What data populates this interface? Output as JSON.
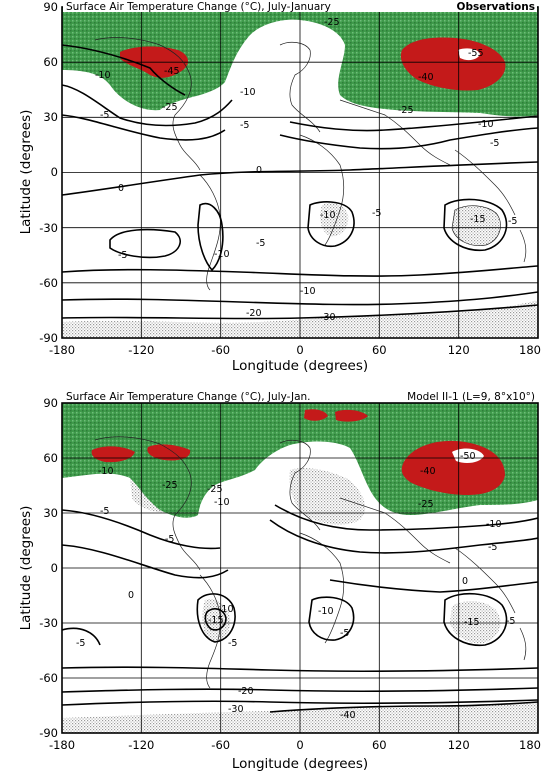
{
  "panels": [
    {
      "title": "Surface Air Temperature Change (°C), July-January",
      "tag": "Observations",
      "labels": [
        "-25",
        "-10",
        "-5",
        "-45",
        "-25",
        "-10",
        "-5",
        "0",
        "-55",
        "-40",
        "-25",
        "-10",
        "-5",
        "0",
        "-10",
        "-5",
        "-10",
        "-5",
        "-15",
        "-5",
        "-5",
        "-10",
        "-20",
        "-30"
      ]
    },
    {
      "title": "Surface Air Temperature Change (°C), July-Jan.",
      "tag": "Model II-1 (L=9, 8°x10°)",
      "labels": [
        "-25",
        "-10",
        "-5",
        "-25",
        "-10",
        "-5",
        "0",
        "-40",
        "-50",
        "-25",
        "-10",
        "-5",
        "0",
        "-10",
        "-15",
        "-5",
        "-10",
        "-5",
        "-15",
        "-5",
        "-5",
        "-20",
        "-30",
        "-40"
      ]
    }
  ],
  "axes": {
    "x_label": "Longitude (degrees)",
    "y_label": "Latitude (degrees)",
    "x_ticks": [
      "-180",
      "-120",
      "-60",
      "0",
      "60",
      "120",
      "180"
    ],
    "y_ticks": [
      "90",
      "60",
      "30",
      "0",
      "-30",
      "-60",
      "-90"
    ]
  },
  "colors": {
    "strong_cooling": "#c41a1a",
    "cooling": "#2e8b3c",
    "light_green": "#7ec487",
    "warming_shade": "#d7d7d7"
  }
}
